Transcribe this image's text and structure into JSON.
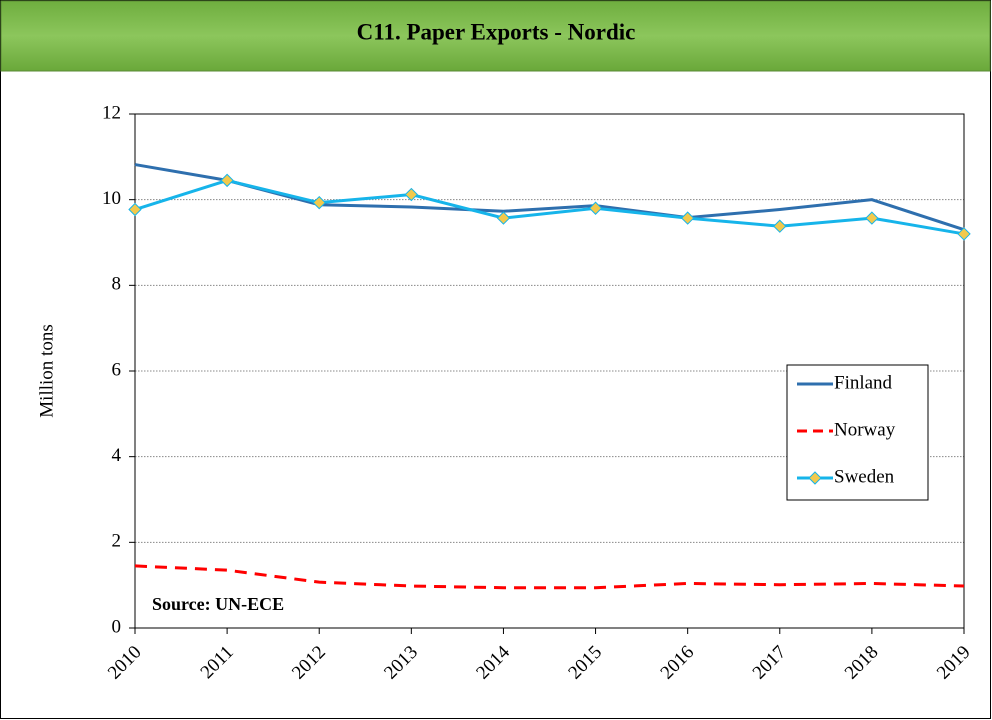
{
  "chart_data": {
    "type": "line",
    "title": "C11. Paper Exports - Nordic",
    "y_label": "Million tons",
    "annotation": "Source: UN-ECE",
    "categories": [
      "2010",
      "2011",
      "2012",
      "2013",
      "2014",
      "2015",
      "2016",
      "2017",
      "2018",
      "2019"
    ],
    "series": [
      {
        "name": "Finland",
        "color": "#2e6fae",
        "style": "solid",
        "values": [
          10.82,
          10.45,
          9.88,
          9.83,
          9.73,
          9.86,
          9.58,
          9.77,
          10.0,
          9.3
        ]
      },
      {
        "name": "Norway",
        "color": "#ff0000",
        "style": "dashed",
        "values": [
          1.45,
          1.35,
          1.07,
          0.98,
          0.94,
          0.94,
          1.04,
          1.01,
          1.04,
          0.98
        ]
      },
      {
        "name": "Sweden",
        "color": "#16b4ea",
        "style": "solid",
        "marker": "diamond",
        "marker_color": "#f2c94c",
        "values": [
          9.77,
          10.45,
          9.93,
          10.12,
          9.57,
          9.8,
          9.57,
          9.38,
          9.57,
          9.2
        ]
      }
    ],
    "ylim": [
      0,
      12
    ],
    "yticks": [
      0,
      2,
      4,
      6,
      8,
      10,
      12
    ],
    "grid": true,
    "legend_position": "right"
  }
}
